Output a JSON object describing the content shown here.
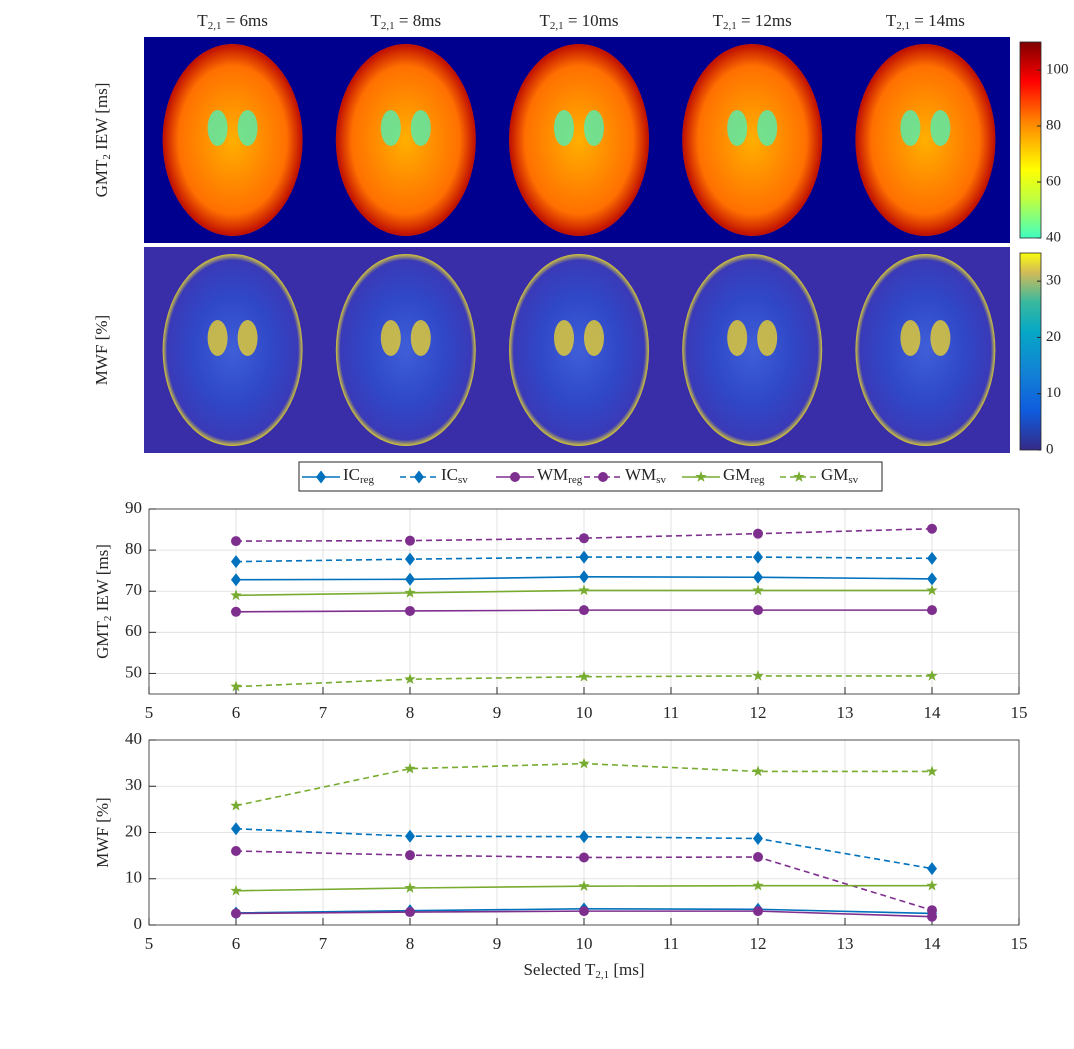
{
  "figure": {
    "column_titles": [
      {
        "main": "T",
        "sub": "2,1",
        "tail": " = 6ms"
      },
      {
        "main": "T",
        "sub": "2,1",
        "tail": " = 8ms"
      },
      {
        "main": "T",
        "sub": "2,1",
        "tail": " = 10ms"
      },
      {
        "main": "T",
        "sub": "2,1",
        "tail": " = 12ms"
      },
      {
        "main": "T",
        "sub": "2,1",
        "tail": " = 14ms"
      }
    ],
    "row_labels": [
      {
        "main": "GMT",
        "sub": "2",
        "tail": " IEW [ms]"
      },
      {
        "main": "MWF [%]"
      }
    ],
    "colorbars": [
      {
        "colormap": "jet",
        "lim": [
          40,
          110
        ],
        "ticks": [
          40,
          60,
          80,
          100
        ]
      },
      {
        "colormap": "parula",
        "lim": [
          0,
          35
        ],
        "ticks": [
          0,
          10,
          20,
          30
        ]
      }
    ]
  },
  "chart_data": [
    {
      "type": "line",
      "ylabel": {
        "main": "GMT",
        "sub": "2",
        "tail": " IEW [ms]"
      },
      "x": [
        6,
        8,
        10,
        12,
        14
      ],
      "xlim": [
        5,
        15
      ],
      "xticks": [
        5,
        6,
        7,
        8,
        9,
        10,
        11,
        12,
        13,
        14,
        15
      ],
      "ylim": [
        45,
        90
      ],
      "yticks": [
        50,
        60,
        70,
        80,
        90
      ],
      "grid": true,
      "series": [
        {
          "name": "IC",
          "sub": "reg",
          "color": "#0072bd",
          "linestyle": "solid",
          "marker": "diamond",
          "values": [
            72.8,
            72.9,
            73.5,
            73.4,
            73.0
          ]
        },
        {
          "name": "IC",
          "sub": "sv",
          "color": "#0072bd",
          "linestyle": "dashed",
          "marker": "diamond",
          "values": [
            77.2,
            77.8,
            78.3,
            78.3,
            78.0
          ]
        },
        {
          "name": "WM",
          "sub": "reg",
          "color": "#7e2f8e",
          "linestyle": "solid",
          "marker": "circle",
          "values": [
            65.0,
            65.2,
            65.4,
            65.4,
            65.4
          ]
        },
        {
          "name": "WM",
          "sub": "sv",
          "color": "#7e2f8e",
          "linestyle": "dashed",
          "marker": "circle",
          "values": [
            82.2,
            82.3,
            82.9,
            84.0,
            85.2
          ]
        },
        {
          "name": "GM",
          "sub": "reg",
          "color": "#77ac30",
          "linestyle": "solid",
          "marker": "star",
          "values": [
            69.0,
            69.6,
            70.2,
            70.2,
            70.2
          ]
        },
        {
          "name": "GM",
          "sub": "sv",
          "color": "#77ac30",
          "linestyle": "dashed",
          "marker": "star",
          "values": [
            46.8,
            48.6,
            49.2,
            49.4,
            49.4
          ]
        }
      ]
    },
    {
      "type": "line",
      "ylabel": {
        "main": "MWF [%]"
      },
      "xlabel": {
        "main": "Selected T",
        "sub": "2,1",
        "tail": " [ms]"
      },
      "x": [
        6,
        8,
        10,
        12,
        14
      ],
      "xlim": [
        5,
        15
      ],
      "xticks": [
        5,
        6,
        7,
        8,
        9,
        10,
        11,
        12,
        13,
        14,
        15
      ],
      "ylim": [
        0,
        40
      ],
      "yticks": [
        0,
        10,
        20,
        30,
        40
      ],
      "grid": true,
      "series": [
        {
          "color": "#0072bd",
          "linestyle": "solid",
          "marker": "diamond",
          "values": [
            2.6,
            3.1,
            3.5,
            3.4,
            2.5
          ]
        },
        {
          "color": "#0072bd",
          "linestyle": "dashed",
          "marker": "diamond",
          "values": [
            20.8,
            19.2,
            19.1,
            18.7,
            12.2
          ]
        },
        {
          "color": "#7e2f8e",
          "linestyle": "solid",
          "marker": "circle",
          "values": [
            2.5,
            2.8,
            3.0,
            3.0,
            1.8
          ]
        },
        {
          "color": "#7e2f8e",
          "linestyle": "dashed",
          "marker": "circle",
          "values": [
            16.0,
            15.1,
            14.6,
            14.7,
            3.2
          ]
        },
        {
          "color": "#77ac30",
          "linestyle": "solid",
          "marker": "star",
          "values": [
            7.4,
            8.0,
            8.4,
            8.5,
            8.5
          ]
        },
        {
          "color": "#77ac30",
          "linestyle": "dashed",
          "marker": "star",
          "values": [
            25.8,
            33.8,
            34.9,
            33.2,
            33.2
          ]
        }
      ]
    }
  ]
}
